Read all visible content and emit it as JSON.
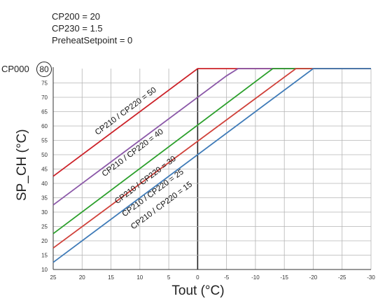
{
  "params": {
    "line1": "CP200 = 20",
    "line2": "CP230 = 1.5",
    "line3": "PreheatSetpoint = 0"
  },
  "cp000": {
    "label": "CP000",
    "value": "80"
  },
  "chart_data": {
    "type": "line",
    "xlabel": "Tout (°C)",
    "ylabel": "SP_CH (°C)",
    "xlim": [
      25,
      -30
    ],
    "ylim": [
      10,
      80
    ],
    "x_ticks": [
      25,
      20,
      15,
      10,
      5,
      0,
      -5,
      -10,
      -15,
      -20,
      -25,
      -30
    ],
    "x_tick_labels": [
      "25",
      "20",
      "15",
      "10",
      "5",
      "0",
      "-5",
      "-10",
      "-15",
      "-20",
      "-25",
      "-30"
    ],
    "y_ticks": [
      10,
      15,
      20,
      25,
      30,
      35,
      40,
      45,
      50,
      55,
      60,
      65,
      70,
      75
    ],
    "y_tick_labels": [
      "10",
      "15",
      "20",
      "25",
      "30",
      "35",
      "40",
      "45",
      "50",
      "55",
      "60",
      "65",
      "70",
      "75"
    ],
    "grid": true,
    "series": [
      {
        "name": "CP210 / CP220 = 50",
        "color": "#cc2229",
        "x": [
          25,
          0,
          -30
        ],
        "y": [
          42.5,
          80,
          80
        ]
      },
      {
        "name": "CP210 / CP220 = 40",
        "color": "#8b58a8",
        "x": [
          25,
          -5,
          -7,
          -30
        ],
        "y": [
          32.5,
          77.5,
          80,
          80
        ]
      },
      {
        "name": "CP210 / CP220 = 30",
        "color": "#2ca02c",
        "x": [
          25,
          -13,
          -30
        ],
        "y": [
          22.5,
          80,
          80
        ]
      },
      {
        "name": "CP210 / CP220 = 25",
        "color": "#d0413a",
        "x": [
          25,
          -17,
          -30
        ],
        "y": [
          17.5,
          80,
          80
        ]
      },
      {
        "name": "CP210 / CP220 = 15",
        "color": "#3f7bb8",
        "x": [
          25,
          -20,
          -30
        ],
        "y": [
          12.5,
          80,
          80
        ]
      }
    ]
  }
}
